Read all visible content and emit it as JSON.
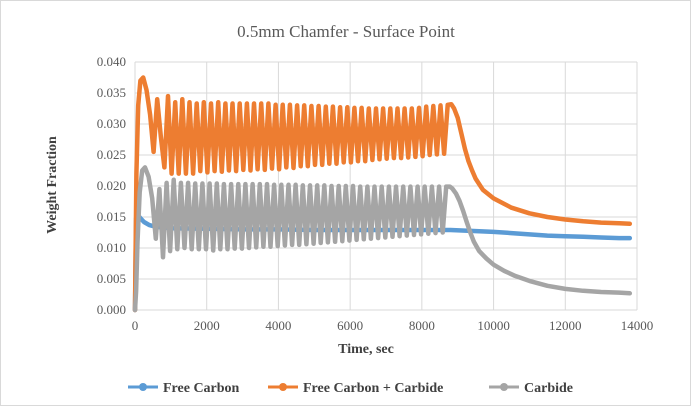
{
  "chart_data": {
    "type": "line",
    "title": "0.5mm Chamfer - Surface Point",
    "xlabel": "Time, sec",
    "ylabel": "Weight Fraction",
    "xlim": [
      0,
      14000
    ],
    "ylim": [
      0,
      0.04
    ],
    "x_ticks": [
      "0",
      "2000",
      "4000",
      "6000",
      "8000",
      "10000",
      "12000",
      "14000"
    ],
    "y_ticks": [
      "0.000",
      "0.005",
      "0.010",
      "0.015",
      "0.020",
      "0.025",
      "0.030",
      "0.035",
      "0.040"
    ],
    "grid": "vertical and horizontal",
    "legend_position": "bottom",
    "series": [
      {
        "name": "Free Carbon",
        "color": "#5b9bd5",
        "x": [
          0,
          30,
          80,
          150,
          250,
          400,
          600,
          1000,
          2000,
          3000,
          4000,
          5000,
          6000,
          7000,
          8000,
          8800,
          9200,
          9600,
          10000,
          10500,
          11000,
          11500,
          12000,
          12500,
          13000,
          13500,
          13800
        ],
        "y": [
          0.0,
          0.0148,
          0.0153,
          0.0148,
          0.0142,
          0.0137,
          0.0134,
          0.0132,
          0.0131,
          0.013,
          0.013,
          0.0129,
          0.0129,
          0.0129,
          0.0129,
          0.0129,
          0.0128,
          0.0127,
          0.0126,
          0.0124,
          0.0122,
          0.012,
          0.0119,
          0.0118,
          0.0117,
          0.0116,
          0.0116
        ]
      },
      {
        "name": "Free Carbon + Carbide",
        "color": "#ed7d31",
        "x": [
          0,
          40,
          90,
          150,
          230,
          320,
          420,
          520,
          620,
          720,
          820,
          920,
          1020,
          1120,
          1220,
          1320,
          1420,
          1520,
          1620,
          1720,
          1820,
          1920,
          2020,
          2120,
          2220,
          2320,
          2420,
          2520,
          2620,
          2720,
          2820,
          2920,
          3020,
          3120,
          3220,
          3320,
          3420,
          3520,
          3620,
          3720,
          3820,
          3920,
          4020,
          4120,
          4220,
          4320,
          4420,
          4520,
          4620,
          4720,
          4820,
          4920,
          5020,
          5120,
          5220,
          5320,
          5420,
          5520,
          5620,
          5720,
          5820,
          5920,
          6020,
          6120,
          6220,
          6320,
          6420,
          6520,
          6620,
          6720,
          6820,
          6920,
          7020,
          7120,
          7220,
          7320,
          7420,
          7520,
          7620,
          7720,
          7820,
          7920,
          8020,
          8120,
          8220,
          8320,
          8420,
          8520,
          8620,
          8720,
          8820,
          8900,
          9000,
          9100,
          9200,
          9300,
          9400,
          9500,
          9700,
          10000,
          10500,
          11000,
          11500,
          12000,
          12500,
          13000,
          13500,
          13800
        ],
        "y": [
          0.0,
          0.022,
          0.033,
          0.037,
          0.0375,
          0.0355,
          0.0315,
          0.0255,
          0.034,
          0.028,
          0.023,
          0.0345,
          0.022,
          0.0335,
          0.022,
          0.034,
          0.022,
          0.0335,
          0.022,
          0.0333,
          0.0224,
          0.0335,
          0.0222,
          0.0333,
          0.0224,
          0.0335,
          0.0223,
          0.0333,
          0.0225,
          0.0333,
          0.0224,
          0.0333,
          0.0226,
          0.0333,
          0.0225,
          0.0333,
          0.0227,
          0.0333,
          0.0226,
          0.0333,
          0.0228,
          0.0331,
          0.0227,
          0.0331,
          0.023,
          0.0331,
          0.0229,
          0.033,
          0.0232,
          0.033,
          0.0232,
          0.0329,
          0.0234,
          0.0329,
          0.0234,
          0.0328,
          0.0236,
          0.0328,
          0.0236,
          0.0327,
          0.0238,
          0.0327,
          0.0238,
          0.0326,
          0.024,
          0.0326,
          0.024,
          0.0325,
          0.0242,
          0.0325,
          0.0243,
          0.0325,
          0.0244,
          0.0325,
          0.0245,
          0.0325,
          0.0245,
          0.0325,
          0.0246,
          0.0325,
          0.0247,
          0.0326,
          0.0248,
          0.0328,
          0.025,
          0.0329,
          0.0251,
          0.033,
          0.0252,
          0.0331,
          0.0332,
          0.0325,
          0.031,
          0.0285,
          0.026,
          0.024,
          0.0225,
          0.0212,
          0.0194,
          0.018,
          0.0165,
          0.0156,
          0.015,
          0.0146,
          0.0143,
          0.0141,
          0.014,
          0.0139
        ]
      },
      {
        "name": "Carbide",
        "color": "#a5a5a5",
        "x": [
          0,
          30,
          70,
          130,
          200,
          280,
          380,
          480,
          580,
          680,
          780,
          880,
          980,
          1080,
          1180,
          1280,
          1380,
          1480,
          1580,
          1680,
          1780,
          1880,
          1980,
          2080,
          2180,
          2280,
          2380,
          2480,
          2580,
          2680,
          2780,
          2880,
          2980,
          3080,
          3180,
          3280,
          3380,
          3480,
          3580,
          3680,
          3780,
          3880,
          3980,
          4080,
          4180,
          4280,
          4380,
          4480,
          4580,
          4680,
          4780,
          4880,
          4980,
          5080,
          5180,
          5280,
          5380,
          5480,
          5580,
          5680,
          5780,
          5880,
          5980,
          6080,
          6180,
          6280,
          6380,
          6480,
          6580,
          6680,
          6780,
          6880,
          6980,
          7080,
          7180,
          7280,
          7380,
          7480,
          7580,
          7680,
          7780,
          7880,
          7980,
          8080,
          8180,
          8280,
          8380,
          8480,
          8580,
          8680,
          8780,
          8850,
          8950,
          9050,
          9150,
          9250,
          9350,
          9450,
          9600,
          9800,
          10000,
          10300,
          10600,
          11000,
          11500,
          12000,
          12500,
          13000,
          13500,
          13800
        ],
        "y": [
          0.0,
          0.003,
          0.011,
          0.019,
          0.0225,
          0.023,
          0.0215,
          0.018,
          0.0115,
          0.0195,
          0.0085,
          0.0205,
          0.0095,
          0.021,
          0.0098,
          0.0205,
          0.01,
          0.0205,
          0.0098,
          0.0204,
          0.0098,
          0.0204,
          0.0098,
          0.0204,
          0.0096,
          0.0204,
          0.0098,
          0.0203,
          0.0098,
          0.0203,
          0.0099,
          0.0203,
          0.0099,
          0.0203,
          0.01,
          0.0203,
          0.0101,
          0.0203,
          0.0102,
          0.0203,
          0.0102,
          0.0202,
          0.0103,
          0.0202,
          0.0104,
          0.0202,
          0.0105,
          0.0202,
          0.0105,
          0.0201,
          0.0106,
          0.0201,
          0.0107,
          0.0201,
          0.0108,
          0.0201,
          0.0109,
          0.02,
          0.011,
          0.02,
          0.0111,
          0.02,
          0.0112,
          0.02,
          0.0113,
          0.0199,
          0.0114,
          0.0199,
          0.0115,
          0.0199,
          0.0116,
          0.0199,
          0.0117,
          0.0199,
          0.0118,
          0.0199,
          0.0119,
          0.0199,
          0.012,
          0.0199,
          0.0121,
          0.0199,
          0.0122,
          0.0199,
          0.0123,
          0.0199,
          0.0124,
          0.0199,
          0.0125,
          0.0199,
          0.0199,
          0.0196,
          0.0188,
          0.0176,
          0.016,
          0.0142,
          0.0125,
          0.011,
          0.0095,
          0.0083,
          0.0073,
          0.0063,
          0.0055,
          0.0047,
          0.0039,
          0.0034,
          0.0031,
          0.0029,
          0.0028,
          0.0027
        ]
      }
    ]
  }
}
